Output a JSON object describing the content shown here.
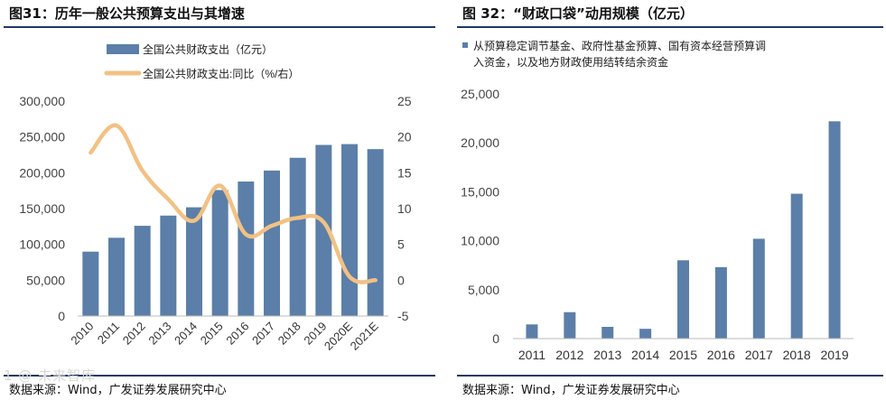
{
  "left": {
    "title": "图31：历年一般公共预算支出与其增速",
    "source": "数据来源：Wind，广发证券发展研究中心"
  },
  "right": {
    "title": "图 32：“财政口袋”动用规模（亿元）",
    "source": "数据来源：Wind，广发证券发展研究中心"
  },
  "watermark": "1 @ 未来智库",
  "colors": {
    "bar": "#5b7fa8",
    "line": "#f2c184",
    "rule": "#1f3864"
  },
  "chart_data": [
    {
      "type": "bar+line",
      "title": "图31：历年一般公共预算支出与其增速",
      "categories": [
        "2010",
        "2011",
        "2012",
        "2013",
        "2014",
        "2015",
        "2016",
        "2017",
        "2018",
        "2019",
        "2020E",
        "2021E"
      ],
      "series": [
        {
          "name": "全国公共财政支出（亿元）",
          "type": "bar",
          "axis": "left",
          "values": [
            89874,
            109248,
            125953,
            140212,
            151786,
            175878,
            187755,
            203085,
            220904,
            238858,
            240000,
            233000
          ]
        },
        {
          "name": "全国公共财政支出:同比（%/右）",
          "type": "line",
          "axis": "right",
          "values": [
            17.8,
            21.6,
            15.3,
            11.3,
            8.3,
            13.2,
            6.4,
            7.6,
            8.7,
            8.1,
            0.5,
            0
          ]
        }
      ],
      "y_left": {
        "min": 0,
        "max": 300000,
        "ticks": [
          "0",
          "50,000",
          "100,000",
          "150,000",
          "200,000",
          "250,000",
          "300,000"
        ]
      },
      "y_right": {
        "min": -5,
        "max": 25,
        "ticks": [
          "-5",
          "0",
          "5",
          "10",
          "15",
          "20",
          "25"
        ]
      },
      "legend": [
        "全国公共财政支出（亿元）",
        "全国公共财政支出:同比（%/右）"
      ]
    },
    {
      "type": "bar",
      "title": "图 32：“财政口袋”动用规模（亿元）",
      "categories": [
        "2011",
        "2012",
        "2013",
        "2014",
        "2015",
        "2016",
        "2017",
        "2018",
        "2019"
      ],
      "series": [
        {
          "name": "从预算稳定调节基金、政府性基金预算、国有资本经营预算调入资金，以及地方财政使用结转结余资金",
          "values": [
            1450,
            2700,
            1200,
            1000,
            8000,
            7300,
            10200,
            14800,
            22200
          ]
        }
      ],
      "y": {
        "min": 0,
        "max": 25000,
        "ticks": [
          "0",
          "5,000",
          "10,000",
          "15,000",
          "20,000",
          "25,000"
        ]
      },
      "legend_lines": [
        "从预算稳定调节基金、政府性基金预算、国有资本经营预算调",
        "入资金，以及地方财政使用结转结余资金"
      ]
    }
  ]
}
